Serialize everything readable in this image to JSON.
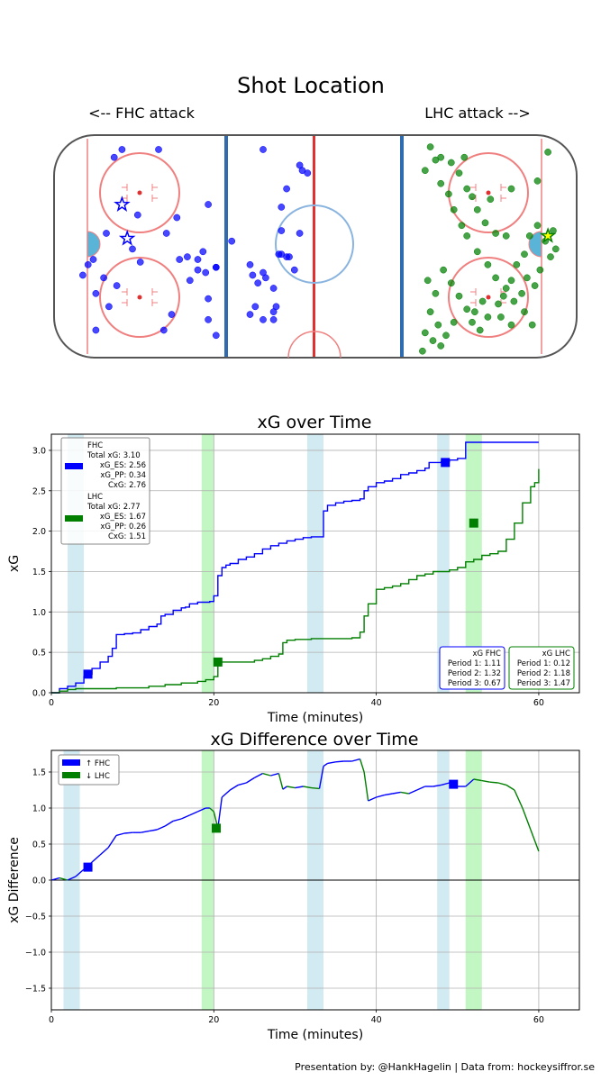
{
  "footer": "Presentation by: @HankHagelin | Data from: hockeysiffror.se",
  "colors": {
    "fhc": "#0000ff",
    "lhc": "#007f00",
    "pp_fhc": "#add8e6",
    "pp_lhc": "#90ee90",
    "goal_star": "#ffff00"
  },
  "chart_data": [
    {
      "type": "scatter",
      "title": "Shot Location",
      "left_label": "<-- FHC attack",
      "right_label": "LHC attack -->",
      "xlim": [
        -100,
        100
      ],
      "ylim": [
        -42.5,
        42.5
      ],
      "series": [
        {
          "name": "FHC",
          "color": "#0000ff",
          "points": [
            [
              -89,
              -11
            ],
            [
              -80,
              5
            ],
            [
              -74,
              37
            ],
            [
              -77,
              34
            ],
            [
              -84,
              -18
            ],
            [
              -84,
              -32
            ],
            [
              -79,
              -23
            ],
            [
              -70,
              -1
            ],
            [
              -76,
              -15
            ],
            [
              -68,
              12
            ],
            [
              -67,
              -6
            ],
            [
              -60,
              37
            ],
            [
              -57,
              5
            ],
            [
              -55,
              -26
            ],
            [
              -53,
              11
            ],
            [
              -52,
              -5
            ],
            [
              -58,
              -32
            ],
            [
              -48,
              -13
            ],
            [
              -49,
              -4
            ],
            [
              -45,
              -9
            ],
            [
              -45,
              -5
            ],
            [
              -43,
              -2
            ],
            [
              -42,
              -10
            ],
            [
              -41,
              16
            ],
            [
              -41,
              -20
            ],
            [
              -41,
              -28
            ],
            [
              -38,
              -8
            ],
            [
              -32,
              2
            ],
            [
              -38,
              -34
            ],
            [
              -22,
              -14
            ],
            [
              -23,
              -23
            ],
            [
              -24,
              -11
            ],
            [
              -25,
              -7
            ],
            [
              -19,
              -12
            ],
            [
              -20,
              -28
            ],
            [
              -16,
              -28
            ],
            [
              -15,
              -23
            ],
            [
              -16,
              -16
            ],
            [
              -14,
              -3
            ],
            [
              -13,
              -3
            ],
            [
              -11,
              -4
            ],
            [
              -13,
              15
            ],
            [
              -11,
              22
            ],
            [
              -6,
              31
            ],
            [
              -5,
              29
            ],
            [
              -3,
              28
            ],
            [
              -13,
              6
            ],
            [
              -10,
              -4
            ],
            [
              -16,
              -25
            ],
            [
              -6,
              5
            ],
            [
              -8,
              -9
            ],
            [
              -25,
              -26
            ],
            [
              -85,
              -5
            ],
            [
              -87,
              -7
            ],
            [
              -38,
              -8
            ],
            [
              -20,
              -10
            ],
            [
              -81,
              -12
            ],
            [
              -20,
              37
            ]
          ],
          "goals": [
            [
              -74,
              16
            ],
            [
              -72,
              3
            ]
          ]
        },
        {
          "name": "LHC",
          "color": "#007f00",
          "points": [
            [
              46,
              33
            ],
            [
              42,
              29
            ],
            [
              44,
              38
            ],
            [
              48,
              34
            ],
            [
              52,
              32
            ],
            [
              55,
              28
            ],
            [
              58,
              22
            ],
            [
              60,
              19
            ],
            [
              62,
              14
            ],
            [
              65,
              9
            ],
            [
              69,
              5
            ],
            [
              73,
              4
            ],
            [
              48,
              24
            ],
            [
              51,
              20
            ],
            [
              53,
              14
            ],
            [
              56,
              8
            ],
            [
              58,
              4
            ],
            [
              62,
              -2
            ],
            [
              66,
              -7
            ],
            [
              69,
              -12
            ],
            [
              73,
              -16
            ],
            [
              75,
              -13
            ],
            [
              77,
              -7
            ],
            [
              80,
              -3
            ],
            [
              82,
              4
            ],
            [
              85,
              8
            ],
            [
              88,
              2
            ],
            [
              90,
              -4
            ],
            [
              49,
              -9
            ],
            [
              52,
              -14
            ],
            [
              55,
              -19
            ],
            [
              58,
              -24
            ],
            [
              60,
              -29
            ],
            [
              63,
              -32
            ],
            [
              66,
              -27
            ],
            [
              70,
              -22
            ],
            [
              72,
              -19
            ],
            [
              76,
              -21
            ],
            [
              79,
              -18
            ],
            [
              81,
              -12
            ],
            [
              84,
              -15
            ],
            [
              86,
              -9
            ],
            [
              43,
              -13
            ],
            [
              46,
              -18
            ],
            [
              44,
              -25
            ],
            [
              47,
              -30
            ],
            [
              50,
              -34
            ],
            [
              45,
              -36
            ],
            [
              41,
              -40
            ],
            [
              42,
              -33
            ],
            [
              48,
              -38
            ],
            [
              53,
              -29
            ],
            [
              71,
              -27
            ],
            [
              75,
              -30
            ],
            [
              80,
              -25
            ],
            [
              83,
              -30
            ],
            [
              61,
              -25
            ],
            [
              64,
              -21
            ],
            [
              91,
              6
            ],
            [
              92,
              -1
            ],
            [
              89,
              36
            ],
            [
              57,
              34
            ],
            [
              85,
              25
            ],
            [
              75,
              22
            ],
            [
              67,
              18
            ]
          ],
          "goals": [
            [
              89,
              4
            ]
          ]
        }
      ]
    },
    {
      "type": "line",
      "title": "xG over Time",
      "xlabel": "Time (minutes)",
      "ylabel": "xG",
      "xlim": [
        0,
        65
      ],
      "ylim": [
        0,
        3.2
      ],
      "xticks": [
        0,
        20,
        40,
        60
      ],
      "yticks": [
        "0.0",
        "0.5",
        "1.0",
        "1.5",
        "2.0",
        "2.5",
        "3.0"
      ],
      "pp_fhc": [
        [
          2,
          4
        ],
        [
          31.5,
          33.5
        ],
        [
          47.5,
          49
        ]
      ],
      "pp_lhc": [
        [
          18.5,
          20
        ],
        [
          51,
          53
        ]
      ],
      "series": [
        {
          "name": "FHC",
          "color": "#0000ff",
          "x": [
            0,
            1,
            2,
            3,
            4,
            4.5,
            5,
            6,
            7,
            7.5,
            8,
            9,
            10,
            11,
            12,
            13,
            13.5,
            14,
            15,
            16,
            16.5,
            17,
            18,
            19,
            19.5,
            20,
            20.5,
            21,
            21.5,
            22,
            23,
            24,
            25,
            26,
            27,
            28,
            29,
            30,
            31,
            32,
            33,
            33.5,
            34,
            35,
            36,
            37,
            38,
            38.5,
            39,
            40,
            41,
            42,
            43,
            44,
            45,
            46,
            46.5,
            47,
            48,
            49,
            50,
            50.5,
            51,
            52,
            53,
            54,
            55,
            56,
            57,
            58,
            59,
            60
          ],
          "y": [
            0,
            0.05,
            0.08,
            0.12,
            0.2,
            0.23,
            0.3,
            0.38,
            0.45,
            0.55,
            0.72,
            0.73,
            0.74,
            0.78,
            0.82,
            0.85,
            0.95,
            0.97,
            1.02,
            1.05,
            1.06,
            1.1,
            1.12,
            1.12,
            1.13,
            1.2,
            1.45,
            1.55,
            1.58,
            1.6,
            1.65,
            1.68,
            1.72,
            1.78,
            1.82,
            1.85,
            1.88,
            1.9,
            1.92,
            1.93,
            1.93,
            2.25,
            2.32,
            2.35,
            2.37,
            2.38,
            2.4,
            2.5,
            2.55,
            2.6,
            2.62,
            2.65,
            2.7,
            2.72,
            2.75,
            2.78,
            2.85,
            2.85,
            2.86,
            2.88,
            2.9,
            2.9,
            3.1,
            3.1,
            3.1,
            3.1,
            3.1,
            3.1,
            3.1,
            3.1,
            3.1,
            3.1
          ],
          "marker": [
            4.5,
            0.23
          ],
          "marker2": [
            48.5,
            2.85
          ]
        },
        {
          "name": "LHC",
          "color": "#007f00",
          "x": [
            0,
            1,
            2,
            3,
            5,
            8,
            10,
            12,
            14,
            16,
            18,
            19,
            20,
            20.5,
            21,
            23,
            25,
            26,
            27,
            28,
            28.5,
            29,
            30,
            31,
            32,
            33,
            34,
            35,
            36,
            37,
            38,
            38.5,
            39,
            40,
            41,
            42,
            43,
            44,
            45,
            46,
            47,
            48,
            49,
            50,
            51,
            52,
            53,
            54,
            55,
            56,
            57,
            58,
            59,
            59.5,
            60
          ],
          "y": [
            0,
            0.02,
            0.04,
            0.05,
            0.05,
            0.06,
            0.06,
            0.08,
            0.1,
            0.12,
            0.14,
            0.16,
            0.2,
            0.38,
            0.38,
            0.38,
            0.4,
            0.42,
            0.45,
            0.48,
            0.62,
            0.65,
            0.66,
            0.66,
            0.67,
            0.67,
            0.67,
            0.67,
            0.67,
            0.68,
            0.75,
            0.95,
            1.1,
            1.28,
            1.3,
            1.32,
            1.35,
            1.4,
            1.45,
            1.47,
            1.5,
            1.5,
            1.52,
            1.55,
            1.62,
            1.65,
            1.7,
            1.72,
            1.75,
            1.9,
            2.1,
            2.35,
            2.55,
            2.6,
            2.77
          ],
          "marker": [
            20.5,
            0.38
          ],
          "marker2": [
            52,
            2.1
          ]
        }
      ],
      "legend": {
        "fhc_lines": [
          "FHC",
          "Total xG: 3.10",
          "xG_ES: 2.56",
          "xG_PP: 0.34",
          "CxG: 2.76"
        ],
        "lhc_lines": [
          "LHC",
          "Total xG: 2.77",
          "xG_ES: 1.67",
          "xG_PP: 0.26",
          "CxG: 1.51"
        ]
      },
      "period_box_fhc": [
        "xG FHC",
        "Period 1: 1.11",
        "Period 2: 1.32",
        "Period 3: 0.67"
      ],
      "period_box_lhc": [
        "xG LHC",
        "Period 1: 0.12",
        "Period 2: 1.18",
        "Period 3: 1.47"
      ]
    },
    {
      "type": "line",
      "title": "xG Difference over Time",
      "xlabel": "Time (minutes)",
      "ylabel": "xG Difference",
      "xlim": [
        0,
        65
      ],
      "ylim": [
        -1.8,
        1.8
      ],
      "xticks": [
        0,
        20,
        40,
        60
      ],
      "yticks": [
        "−1.5",
        "−1.0",
        "−0.5",
        "0.0",
        "0.5",
        "1.0",
        "1.5"
      ],
      "legend": [
        "↑ FHC",
        "↓ LHC"
      ],
      "series": [
        {
          "name": "diff",
          "x": [
            0,
            1,
            2,
            3,
            4,
            4.5,
            5,
            6,
            7,
            8,
            9,
            10,
            11,
            12,
            13,
            14,
            15,
            16,
            17,
            18,
            19,
            19.5,
            20,
            20.5,
            21,
            22,
            23,
            24,
            25,
            26,
            27,
            28,
            28.5,
            29,
            30,
            31,
            32,
            33,
            33.5,
            34,
            35,
            36,
            37,
            38,
            38.5,
            39,
            40,
            41,
            42,
            43,
            44,
            45,
            46,
            47,
            48,
            49,
            50,
            51,
            52,
            53,
            54,
            55,
            56,
            57,
            58,
            59,
            60
          ],
          "y": [
            0,
            0.03,
            0,
            0.05,
            0.15,
            0.18,
            0.25,
            0.35,
            0.45,
            0.62,
            0.65,
            0.66,
            0.66,
            0.68,
            0.7,
            0.75,
            0.82,
            0.85,
            0.9,
            0.95,
            1.0,
            1.0,
            0.95,
            0.72,
            1.15,
            1.25,
            1.32,
            1.35,
            1.42,
            1.48,
            1.45,
            1.48,
            1.26,
            1.3,
            1.28,
            1.3,
            1.28,
            1.27,
            1.58,
            1.62,
            1.64,
            1.65,
            1.65,
            1.68,
            1.5,
            1.1,
            1.15,
            1.18,
            1.2,
            1.22,
            1.2,
            1.25,
            1.3,
            1.3,
            1.32,
            1.35,
            1.3,
            1.3,
            1.4,
            1.38,
            1.36,
            1.35,
            1.32,
            1.25,
            1.0,
            0.7,
            0.4
          ],
          "marker": [
            4.5,
            0.18
          ],
          "marker_lhc": [
            20.3,
            0.72
          ],
          "marker2": [
            49.5,
            1.33
          ]
        }
      ],
      "pp_fhc": [
        [
          1.5,
          3.5
        ],
        [
          31.5,
          33.5
        ],
        [
          47.5,
          49
        ]
      ],
      "pp_lhc": [
        [
          18.5,
          20
        ],
        [
          51,
          53
        ]
      ]
    }
  ]
}
